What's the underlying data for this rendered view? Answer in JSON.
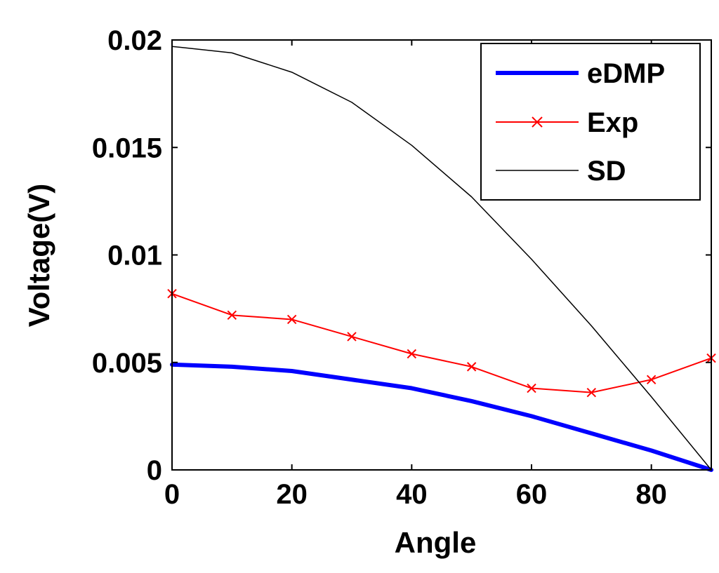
{
  "chart_data": {
    "type": "line",
    "title": "",
    "xlabel": "Angle",
    "ylabel": "Voltage(V)",
    "xlim": [
      0,
      90
    ],
    "ylim": [
      0,
      0.02
    ],
    "xticks": [
      0,
      20,
      40,
      60,
      80
    ],
    "xtick_labels": [
      "0",
      "20",
      "40",
      "60",
      "80"
    ],
    "yticks": [
      0,
      0.005,
      0.01,
      0.015,
      0.02
    ],
    "ytick_labels": [
      "0",
      "0.005",
      "0.01",
      "0.015",
      "0.02"
    ],
    "grid": false,
    "legend_position": "top-right",
    "series": [
      {
        "name": "eDMP",
        "color": "#0000ff",
        "marker": "none",
        "line_style": "thick",
        "x": [
          0,
          10,
          20,
          30,
          40,
          50,
          60,
          70,
          80,
          90
        ],
        "y": [
          0.0049,
          0.0048,
          0.0046,
          0.0042,
          0.0038,
          0.0032,
          0.0025,
          0.0017,
          0.0009,
          0.0
        ]
      },
      {
        "name": "Exp",
        "color": "#ff0000",
        "marker": "x",
        "line_style": "solid",
        "x": [
          0,
          10,
          20,
          30,
          40,
          50,
          60,
          70,
          80,
          90
        ],
        "y": [
          0.0082,
          0.0072,
          0.007,
          0.0062,
          0.0054,
          0.0048,
          0.0038,
          0.0036,
          0.0042,
          0.0052
        ]
      },
      {
        "name": "SD",
        "color": "#000000",
        "marker": "none",
        "line_style": "thin",
        "x": [
          0,
          10,
          20,
          30,
          40,
          50,
          60,
          70,
          80,
          90
        ],
        "y": [
          0.0197,
          0.0194,
          0.0185,
          0.0171,
          0.0151,
          0.0127,
          0.0098,
          0.0067,
          0.0034,
          0.0
        ]
      }
    ]
  }
}
